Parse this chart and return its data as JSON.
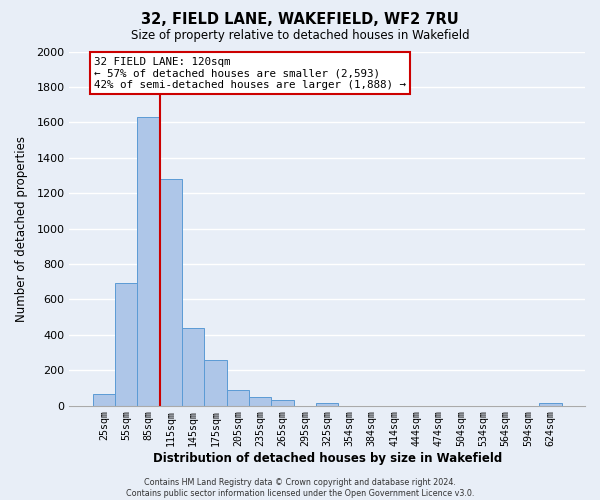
{
  "title": "32, FIELD LANE, WAKEFIELD, WF2 7RU",
  "subtitle": "Size of property relative to detached houses in Wakefield",
  "xlabel": "Distribution of detached houses by size in Wakefield",
  "ylabel": "Number of detached properties",
  "bin_labels": [
    "25sqm",
    "55sqm",
    "85sqm",
    "115sqm",
    "145sqm",
    "175sqm",
    "205sqm",
    "235sqm",
    "265sqm",
    "295sqm",
    "325sqm",
    "354sqm",
    "384sqm",
    "414sqm",
    "444sqm",
    "474sqm",
    "504sqm",
    "534sqm",
    "564sqm",
    "594sqm",
    "624sqm"
  ],
  "bar_values": [
    65,
    690,
    1630,
    1280,
    440,
    255,
    90,
    50,
    30,
    0,
    15,
    0,
    0,
    0,
    0,
    0,
    0,
    0,
    0,
    0,
    15
  ],
  "bar_color": "#aec6e8",
  "bar_edge_color": "#5b9bd5",
  "vline_color": "#cc0000",
  "vline_x_index": 2.5,
  "ylim": [
    0,
    2000
  ],
  "yticks": [
    0,
    200,
    400,
    600,
    800,
    1000,
    1200,
    1400,
    1600,
    1800,
    2000
  ],
  "annotation_text": "32 FIELD LANE: 120sqm\n← 57% of detached houses are smaller (2,593)\n42% of semi-detached houses are larger (1,888) →",
  "annotation_box_color": "#ffffff",
  "annotation_border_color": "#cc0000",
  "footer_text": "Contains HM Land Registry data © Crown copyright and database right 2024.\nContains public sector information licensed under the Open Government Licence v3.0.",
  "background_color": "#e8eef7",
  "grid_color": "#ffffff"
}
